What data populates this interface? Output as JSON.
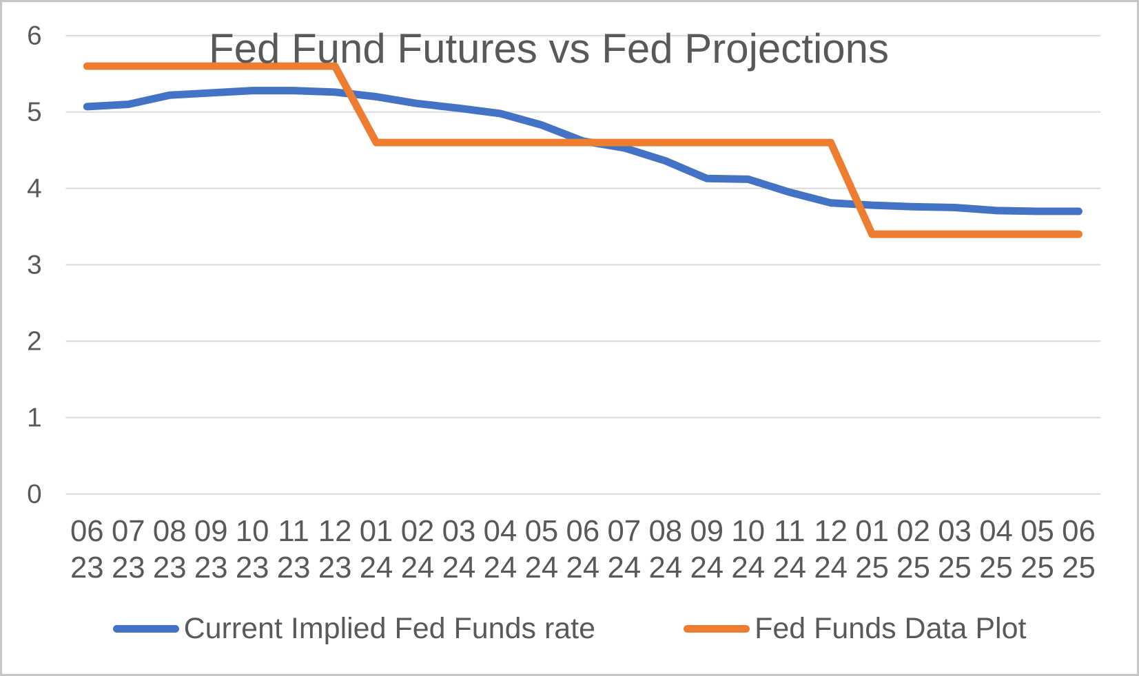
{
  "chart_data": {
    "type": "line",
    "title": "Fed Fund Futures vs Fed Projections",
    "categories": [
      "06 23",
      "07 23",
      "08 23",
      "09 23",
      "10 23",
      "11 23",
      "12 23",
      "01 24",
      "02 24",
      "03 24",
      "04 24",
      "05 24",
      "06 24",
      "07 24",
      "08 24",
      "09 24",
      "10 24",
      "11 24",
      "12 24",
      "01 25",
      "02 25",
      "03 25",
      "04 25",
      "05 25",
      "06 25"
    ],
    "x_months": [
      "06",
      "07",
      "08",
      "09",
      "10",
      "11",
      "12",
      "01",
      "02",
      "03",
      "04",
      "05",
      "06",
      "07",
      "08",
      "09",
      "10",
      "11",
      "12",
      "01",
      "02",
      "03",
      "04",
      "05",
      "06"
    ],
    "x_years": [
      "23",
      "23",
      "23",
      "23",
      "23",
      "23",
      "23",
      "24",
      "24",
      "24",
      "24",
      "24",
      "24",
      "24",
      "24",
      "24",
      "24",
      "24",
      "24",
      "25",
      "25",
      "25",
      "25",
      "25",
      "25"
    ],
    "series": [
      {
        "name": "Current Implied Fed Funds rate",
        "color": "#4472C4",
        "values": [
          5.07,
          5.1,
          5.22,
          5.25,
          5.28,
          5.28,
          5.26,
          5.2,
          5.11,
          5.05,
          4.98,
          4.83,
          4.62,
          4.53,
          4.36,
          4.13,
          4.12,
          3.95,
          3.81,
          3.78,
          3.76,
          3.75,
          3.71,
          3.7,
          3.7
        ]
      },
      {
        "name": "Fed Funds Data Plot",
        "color": "#ED7D31",
        "values": [
          5.6,
          5.6,
          5.6,
          5.6,
          5.6,
          5.6,
          5.6,
          4.6,
          4.6,
          4.6,
          4.6,
          4.6,
          4.6,
          4.6,
          4.6,
          4.6,
          4.6,
          4.6,
          4.6,
          3.4,
          3.4,
          3.4,
          3.4,
          3.4,
          3.4
        ]
      }
    ],
    "xlabel": "",
    "ylabel": "",
    "ylim": [
      0,
      6
    ],
    "yticks": [
      0,
      1,
      2,
      3,
      4,
      5,
      6
    ],
    "grid": "horizontal",
    "legend_position": "bottom",
    "colors": {
      "text": "#595959",
      "gridline": "#D9D9D9",
      "background": "#FFFFFF",
      "frame_border": "#C6C6C6"
    }
  }
}
